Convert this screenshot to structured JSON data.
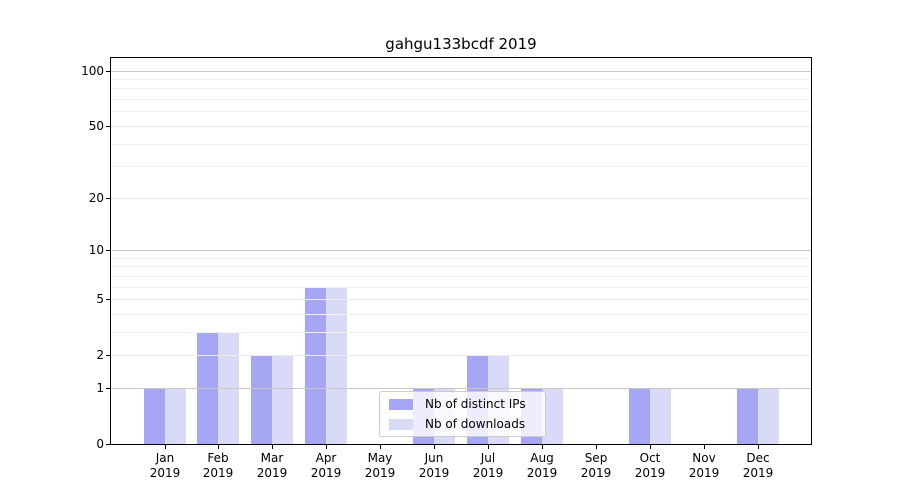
{
  "chart_data": {
    "type": "bar",
    "title": "gahgu133bcdf 2019",
    "categories": [
      "Jan",
      "Feb",
      "Mar",
      "Apr",
      "May",
      "Jun",
      "Jul",
      "Aug",
      "Sep",
      "Oct",
      "Nov",
      "Dec"
    ],
    "category_sub_label": "2019",
    "series": [
      {
        "name": "Nb of distinct IPs",
        "color": "#a6a6f4",
        "values": [
          1,
          3,
          2,
          6,
          0,
          1,
          2,
          1,
          0,
          1,
          0,
          1
        ]
      },
      {
        "name": "Nb of downloads",
        "color": "#d9d9f8",
        "values": [
          1,
          3,
          2,
          6,
          0,
          1,
          2,
          1,
          0,
          1,
          0,
          1
        ]
      }
    ],
    "xlabel": "",
    "ylabel": "",
    "y_scale": "log10(1+x)",
    "ylim": [
      0,
      117
    ],
    "y_ticks": [
      0,
      1,
      2,
      5,
      10,
      20,
      50,
      100
    ],
    "y_minor_gridlines": [
      3,
      4,
      6,
      7,
      8,
      9,
      30,
      40,
      60,
      70,
      80,
      90
    ],
    "y_emphasis_gridlines": [
      1,
      10,
      100
    ],
    "grid": "on",
    "legend_position": "inside lower center",
    "grid_colors": {
      "emphasis": "#c8c8c8",
      "major": "#ebebeb",
      "minor": "#f2f2f2"
    },
    "axis_color": "#000000"
  }
}
